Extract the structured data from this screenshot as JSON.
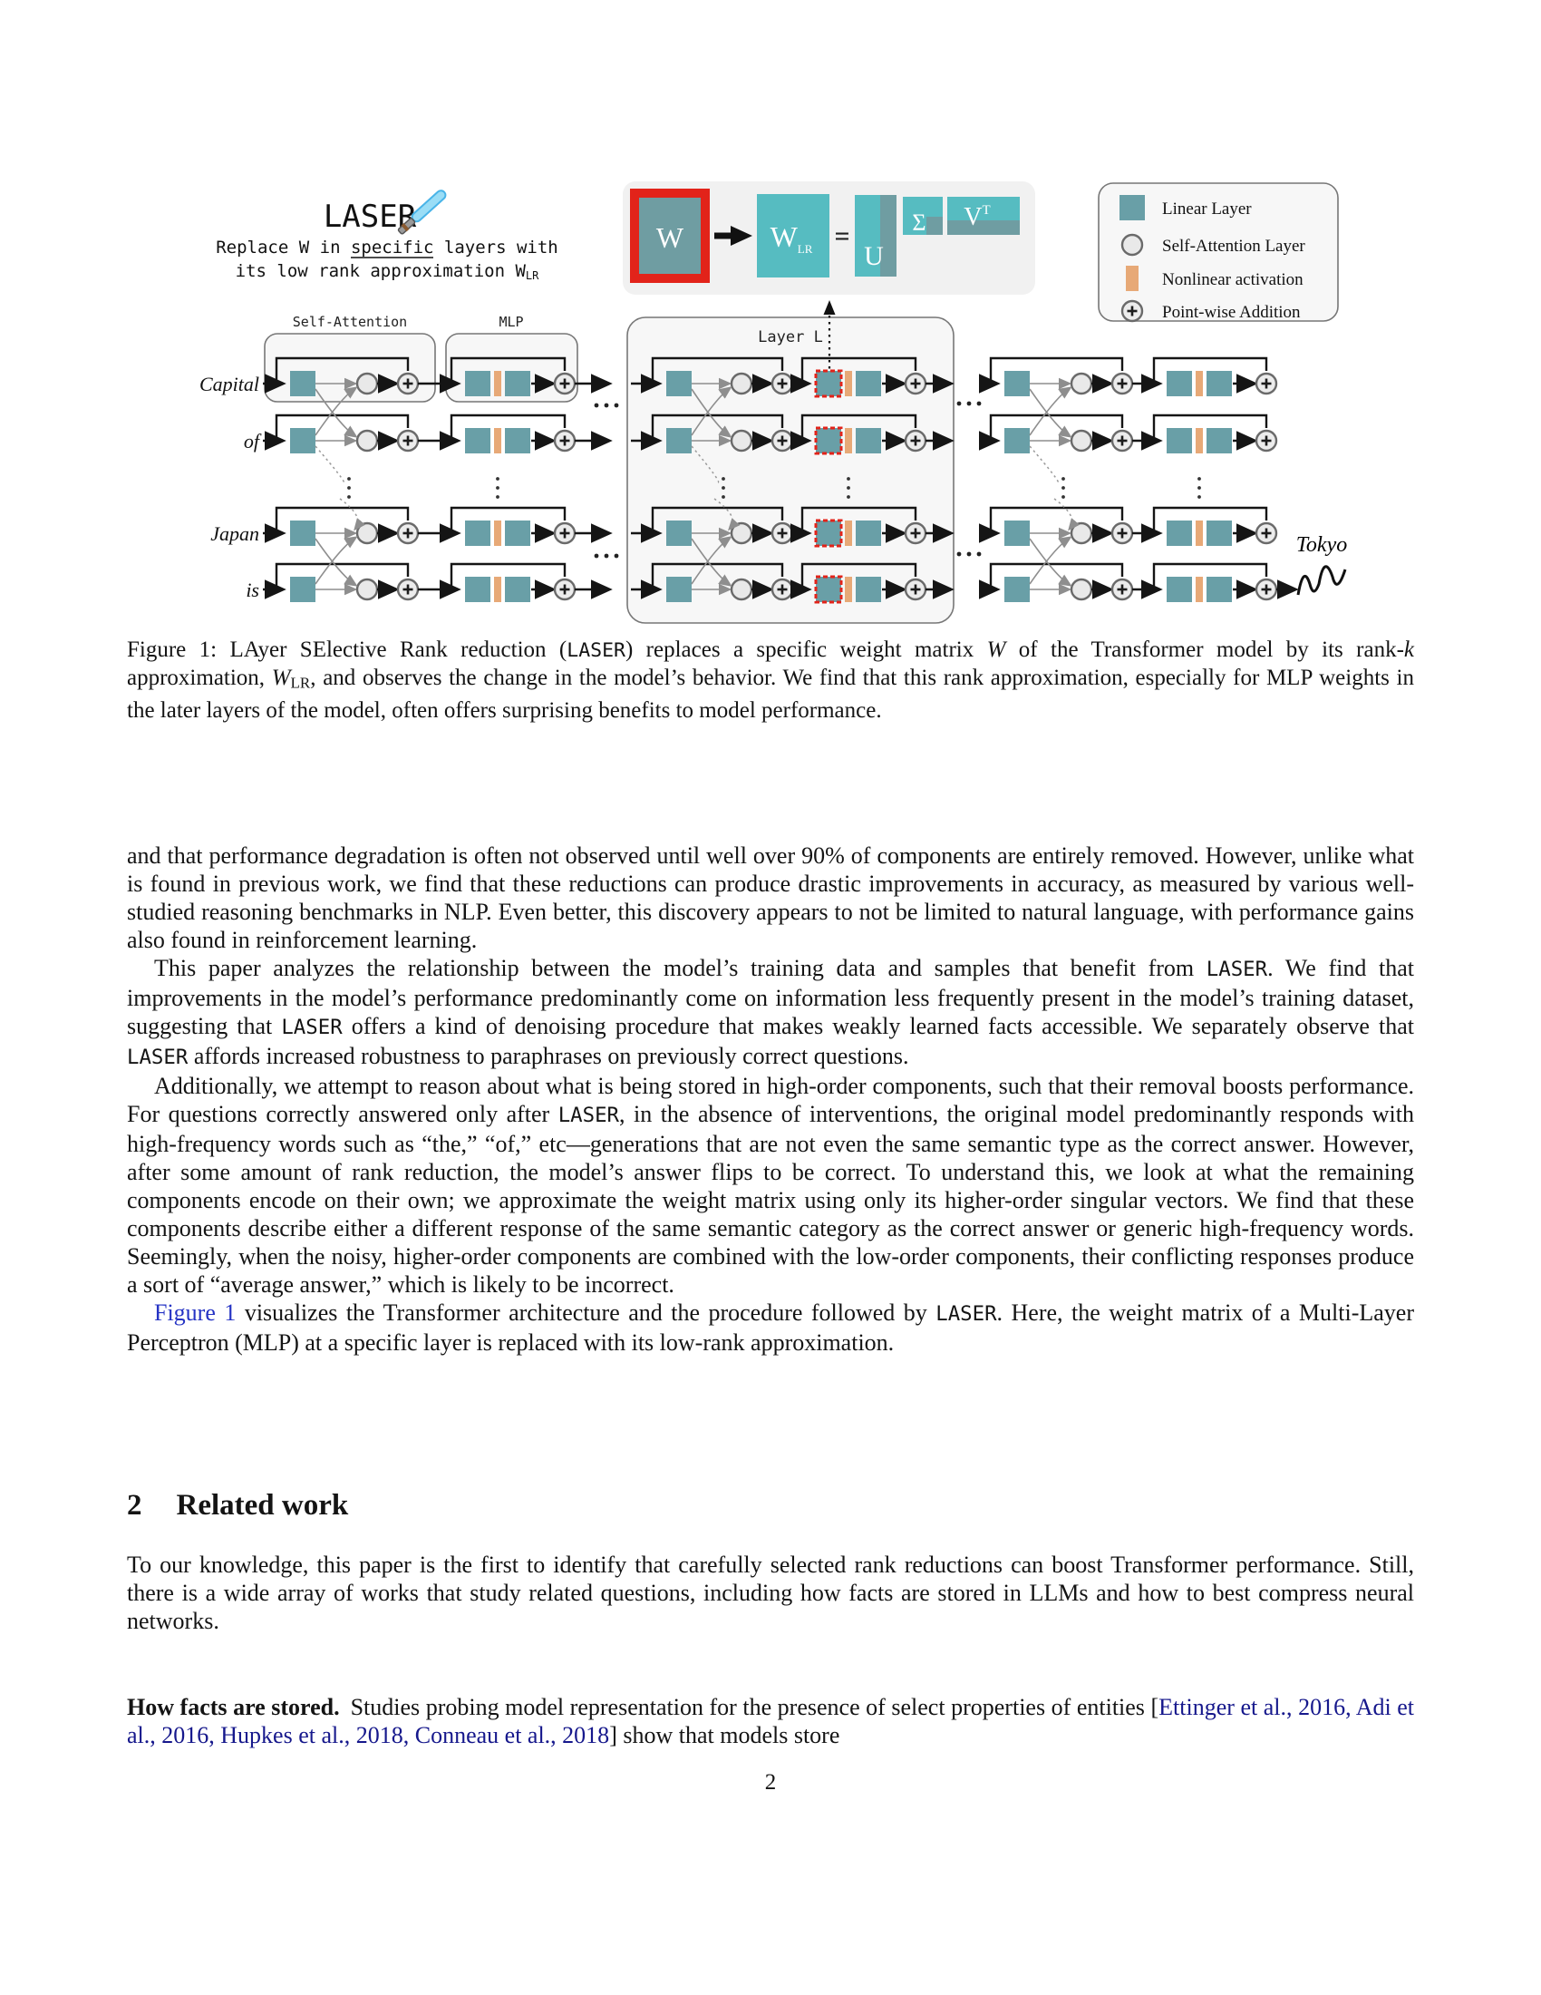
{
  "colors": {
    "teal": "#699fa7",
    "teal_bright": "#56bcc1",
    "teal_muted": "#6f9da2",
    "orange": "#e7a977",
    "red": "#e2231a",
    "link_blue": "#2533c4",
    "cite_blue": "#16188c"
  },
  "figure": {
    "laser": {
      "title": "LASER",
      "line1_pre": "Replace W in ",
      "line1_underlined": "specific",
      "line1_post": " layers with",
      "line2_main": "its low rank approximation W",
      "line2_sub": "LR"
    },
    "svd": {
      "w": "W",
      "wlr_main": "W",
      "wlr_sub": "LR",
      "eq": "=",
      "u": "U",
      "sigma": "Σ",
      "v": "V",
      "v_sup": "T"
    },
    "legend": {
      "items": [
        "Linear Layer",
        "Self-Attention Layer",
        "Nonlinear activation",
        "Point-wise Addition"
      ]
    },
    "labels": {
      "self_attention": "Self-Attention",
      "mlp": "MLP",
      "layer_l": "Layer L"
    },
    "tokens": [
      "Capital",
      "of",
      "Japan",
      "is"
    ],
    "output_token": "Tokyo"
  },
  "caption": {
    "s1": "Figure 1: LAyer SElective Rank reduction (",
    "laser": "LASER",
    "s2": ") replaces a specific weight matrix ",
    "w": "W",
    "s3": " of the Transformer model by its rank-",
    "k": "k",
    "s4": " approximation, ",
    "w2": "W",
    "sub2": "LR",
    "s5": ", and observes the change in the model’s behavior. We find that this rank approximation, especially for MLP weights in the later layers of the model, often offers surprising benefits to model performance."
  },
  "p1": "and that performance degradation is often not observed until well over 90% of components are entirely removed. However, unlike what is found in previous work, we find that these reductions can produce drastic improvements in accuracy, as measured by various well-studied reasoning benchmarks in NLP. Even better, this discovery appears to not be limited to natural language, with performance gains also found in reinforcement learning.",
  "p2": {
    "s1": "This paper analyzes the relationship between the model’s training data and samples that benefit from ",
    "l1": "LASER",
    "s2": ". We find that improvements in the model’s performance predominantly come on information less frequently present in the model’s training dataset, suggesting that ",
    "l2": "LASER",
    "s3": " offers a kind of denoising procedure that makes weakly learned facts accessible. We separately observe that ",
    "l3": "LASER",
    "s4": " affords increased robustness to paraphrases on previously correct questions."
  },
  "p3": {
    "s1": "Additionally, we attempt to reason about what is being stored in high-order components, such that their removal boosts performance. For questions correctly answered only after ",
    "l1": "LASER",
    "s2": ", in the absence of interventions, the original model predominantly responds with high-frequency words such as “the,” “of,” etc—generations that are not even the same semantic type as the correct answer. However, after some amount of rank reduction, the model’s answer flips to be correct. To understand this, we look at what the remaining components encode on their own; we approximate the weight matrix using only its higher-order singular vectors. We find that these components describe either a different response of the same semantic category as the correct answer or generic high-frequency words. Seemingly, when the noisy, higher-order components are combined with the low-order components, their conflicting responses produce a sort of “average answer,” which is likely to be incorrect."
  },
  "p4": {
    "link": "Figure 1",
    "s1": " visualizes the Transformer architecture and the procedure followed by ",
    "l1": "LASER",
    "s2": ". Here, the weight matrix of a Multi-Layer Perceptron (MLP) at a specific layer is replaced with its low-rank approximation."
  },
  "section": {
    "number": "2",
    "title": "Related work"
  },
  "p5": "To our knowledge, this paper is the first to identify that carefully selected rank reductions can boost Transformer performance. Still, there is a wide array of works that study related questions, including how facts are stored in LLMs and how to best compress neural networks.",
  "p6": {
    "lead": "How facts are stored.",
    "s1": "Studies probing model representation for the presence of select properties of entities [",
    "cites": "Ettinger et al., 2016, Adi et al., 2016, Hupkes et al., 2018, Conneau et al., 2018",
    "s2": "] show that models store"
  },
  "page_number": "2"
}
